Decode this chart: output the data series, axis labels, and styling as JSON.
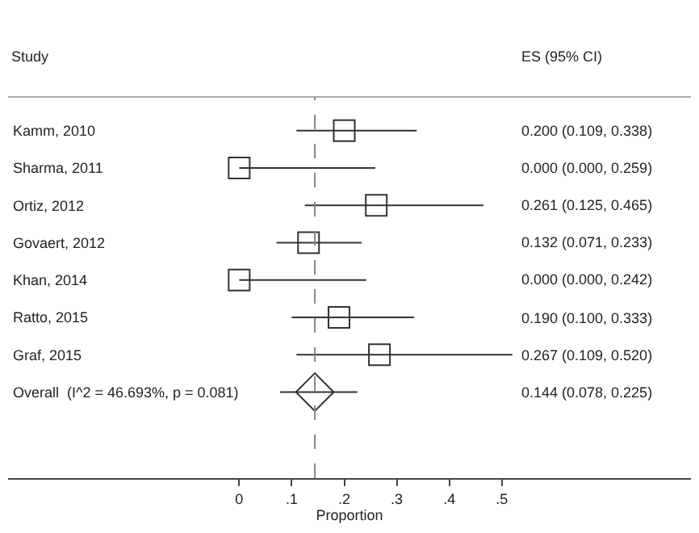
{
  "chart_data": {
    "type": "scatter",
    "orientation": "horizontal",
    "xlabel": "Proportion",
    "categories": [
      "Kamm, 2010",
      "Sharma, 2011",
      "Ortiz, 2012",
      "Govaert, 2012",
      "Khan, 2014",
      "Ratto, 2015",
      "Graf, 2015",
      "Overall  (I^2 = 46.693%, p = 0.081)"
    ],
    "series": [
      {
        "color": "#333333",
        "marker": "square",
        "values": [
          0.2,
          0.0,
          0.261,
          0.132,
          0.0,
          0.19,
          0.267,
          null
        ],
        "errors": [
          [
            0.109,
            0.338
          ],
          [
            0.0,
            0.259
          ],
          [
            0.125,
            0.465
          ],
          [
            0.071,
            0.233
          ],
          [
            0.0,
            0.242
          ],
          [
            0.1,
            0.333
          ],
          [
            0.109,
            0.52
          ],
          null
        ]
      },
      {
        "color": "#333333",
        "marker": "diamond",
        "values": [
          null,
          null,
          null,
          null,
          null,
          null,
          null,
          0.144
        ],
        "errors": [
          null,
          null,
          null,
          null,
          null,
          null,
          null,
          [
            0.078,
            0.225
          ]
        ]
      }
    ],
    "xlim": [
      -0.44,
      0.86
    ],
    "xticks": [
      0,
      {
        "value": 0.1,
        "label": ".1"
      },
      {
        "value": 0.2,
        "label": ".2"
      },
      {
        "value": 0.3,
        "label": ".3"
      },
      {
        "value": 0.4,
        "label": ".4"
      },
      {
        "value": 0.5,
        "label": ".5"
      }
    ],
    "ref_lines": [
      {
        "axis": "x",
        "value": 0.144,
        "label": null,
        "color": "#888888",
        "line_style": "dashed"
      }
    ],
    "annotations": [
      "Study",
      "ES (95% CI)",
      "0.200 (0.109, 0.338)",
      "0.000 (0.000, 0.259)",
      "0.261 (0.125, 0.465)",
      "0.132 (0.071, 0.233)",
      "0.000 (0.000, 0.242)",
      "0.190 (0.100, 0.333)",
      "0.267 (0.109, 0.520)",
      "0.144 (0.078, 0.225)"
    ]
  }
}
